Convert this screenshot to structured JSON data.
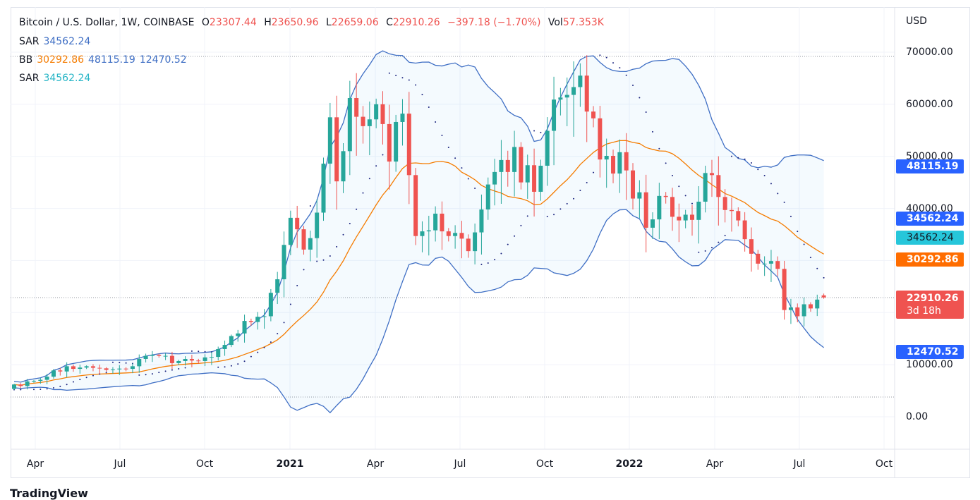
{
  "header": {
    "symbol": "Bitcoin / U.S. Dollar, 1W, COINBASE",
    "o_label": "O",
    "o": "23307.44",
    "h_label": "H",
    "h": "23650.96",
    "l_label": "L",
    "l": "22659.06",
    "c_label": "C",
    "c": "22910.26",
    "change": "−397.18 (−1.70%)",
    "vol_label": "Vol",
    "vol": "57.353K"
  },
  "indicators": [
    {
      "name": "SAR",
      "values": [
        "34562.24"
      ]
    },
    {
      "name": "BB",
      "values": [
        "30292.86",
        "48115.19",
        "12470.52"
      ]
    },
    {
      "name": "SAR",
      "values": [
        "34562.24"
      ]
    }
  ],
  "price_labels": {
    "bb_upper": "48115.19",
    "sar1": "34562.24",
    "sar2": "34562.24",
    "bb_basis": "30292.86",
    "last": "22910.26",
    "countdown": "3d 18h",
    "bb_lower": "12470.52"
  },
  "colors": {
    "up": "#26a69a",
    "down": "#ef5350",
    "bb_band": "#3e6ec4",
    "bb_basis": "#f57c00",
    "sar": "#1a237e",
    "blue_label": "#2962ff",
    "cyan_label": "#26c6da",
    "orange_label": "#ff6d00",
    "red_label": "#ef5350"
  },
  "logo": "TradingView",
  "chart_data": {
    "type": "candlestick",
    "title": "Bitcoin / U.S. Dollar, 1W, COINBASE",
    "currency": "USD",
    "y_ticks": [
      "70000.00",
      "60000.00",
      "50000.00",
      "40000.00",
      "10000.00",
      "0.00"
    ],
    "ylim": [
      0,
      70000
    ],
    "x_ticks": [
      {
        "label": "Apr",
        "bold": false
      },
      {
        "label": "Jul",
        "bold": false
      },
      {
        "label": "Oct",
        "bold": false
      },
      {
        "label": "2021",
        "bold": true
      },
      {
        "label": "Apr",
        "bold": false
      },
      {
        "label": "Jul",
        "bold": false
      },
      {
        "label": "Oct",
        "bold": false
      },
      {
        "label": "2022",
        "bold": true
      },
      {
        "label": "Apr",
        "bold": false
      },
      {
        "label": "Jul",
        "bold": false
      },
      {
        "label": "Oct",
        "bold": false
      }
    ],
    "first_week": "2020-03-16",
    "first_open": 5350,
    "closes": [
      6200,
      5900,
      6800,
      6900,
      7100,
      7700,
      8900,
      8700,
      9700,
      9200,
      9450,
      9700,
      9400,
      9300,
      9000,
      9100,
      9250,
      9200,
      9700,
      11100,
      11700,
      11900,
      11700,
      11700,
      10300,
      10700,
      11100,
      10800,
      10700,
      11400,
      11500,
      13000,
      13800,
      15500,
      16000,
      18400,
      18200,
      19200,
      19300,
      23800,
      26400,
      33000,
      38200,
      36000,
      32100,
      34300,
      39200,
      48600,
      57500,
      45200,
      51000,
      61200,
      57600,
      55800,
      57100,
      60000,
      56200,
      49000,
      56600,
      58200,
      46400,
      34700,
      35600,
      35800,
      39000,
      35600,
      34700,
      35300,
      34200,
      31800,
      35400,
      39800,
      44600,
      47000,
      49300,
      47000,
      51800,
      45000,
      48300,
      43200,
      48200,
      54900,
      60900,
      61300,
      61800,
      63300,
      65500,
      58600,
      57300,
      49400,
      50100,
      46700,
      50800,
      47300,
      41900,
      43100,
      36300,
      37900,
      42400,
      42200,
      38400,
      37700,
      38800,
      37800,
      41300,
      46800,
      46400,
      42200,
      39700,
      39500,
      37700,
      34100,
      31300,
      29400,
      29400,
      29900,
      28400,
      20500,
      21000,
      19300,
      21600,
      20800,
      22500,
      22910.26
    ],
    "last_candle": {
      "open": 23307.44,
      "high": 23650.96,
      "low": 22659.06,
      "close": 22910.26
    },
    "indicators": [
      "Bollinger Bands (20, 2)",
      "Parabolic SAR"
    ]
  }
}
